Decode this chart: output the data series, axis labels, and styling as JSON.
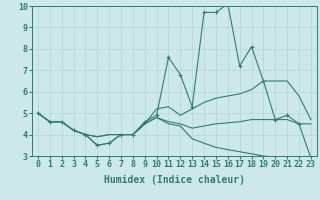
{
  "xlabel": "Humidex (Indice chaleur)",
  "ylabel": "",
  "background_color": "#cde8ea",
  "line_color": "#2d7d6e",
  "xlim": [
    -0.5,
    23.5
  ],
  "ylim": [
    3,
    10
  ],
  "yticks": [
    3,
    4,
    5,
    6,
    7,
    8,
    9,
    10
  ],
  "xticks": [
    0,
    1,
    2,
    3,
    4,
    5,
    6,
    7,
    8,
    9,
    10,
    11,
    12,
    13,
    14,
    15,
    16,
    17,
    18,
    19,
    20,
    21,
    22,
    23
  ],
  "line1_x": [
    0,
    1,
    2,
    3,
    4,
    5,
    6,
    7,
    8,
    9,
    10,
    11,
    12,
    13,
    14,
    15,
    16,
    17,
    18,
    19,
    20,
    21,
    22,
    23
  ],
  "line1_y": [
    5.0,
    4.6,
    4.6,
    4.2,
    4.0,
    3.5,
    3.6,
    4.0,
    4.0,
    4.6,
    4.9,
    7.6,
    6.8,
    5.3,
    9.7,
    9.7,
    10.1,
    7.2,
    8.1,
    6.5,
    4.7,
    4.9,
    4.5,
    2.9
  ],
  "line2_x": [
    0,
    1,
    2,
    3,
    4,
    5,
    6,
    7,
    8,
    9,
    10,
    11,
    12,
    13,
    14,
    15,
    16,
    17,
    18,
    19,
    20,
    21,
    22,
    23
  ],
  "line2_y": [
    5.0,
    4.6,
    4.6,
    4.2,
    4.0,
    3.9,
    4.0,
    4.0,
    4.0,
    4.5,
    5.2,
    5.3,
    4.9,
    5.2,
    5.5,
    5.7,
    5.8,
    5.9,
    6.1,
    6.5,
    6.5,
    6.5,
    5.8,
    4.7
  ],
  "line3_x": [
    0,
    1,
    2,
    3,
    4,
    5,
    6,
    7,
    8,
    9,
    10,
    11,
    12,
    13,
    14,
    15,
    16,
    17,
    18,
    19,
    20,
    21,
    22,
    23
  ],
  "line3_y": [
    5.0,
    4.6,
    4.6,
    4.2,
    4.0,
    3.5,
    3.6,
    4.0,
    4.0,
    4.5,
    4.8,
    4.5,
    4.4,
    3.8,
    3.6,
    3.4,
    3.3,
    3.2,
    3.1,
    3.0,
    2.95,
    2.9,
    2.85,
    2.9
  ],
  "line4_x": [
    0,
    1,
    2,
    3,
    4,
    5,
    6,
    7,
    8,
    9,
    10,
    11,
    12,
    13,
    14,
    15,
    16,
    17,
    18,
    19,
    20,
    21,
    22,
    23
  ],
  "line4_y": [
    5.0,
    4.6,
    4.6,
    4.2,
    4.0,
    3.9,
    4.0,
    4.0,
    4.0,
    4.5,
    4.8,
    4.6,
    4.5,
    4.3,
    4.4,
    4.5,
    4.55,
    4.6,
    4.7,
    4.7,
    4.7,
    4.7,
    4.5,
    4.5
  ],
  "markers_x": [
    0,
    1,
    2,
    3,
    4,
    5,
    6,
    7,
    8,
    9,
    10,
    11,
    12,
    13,
    14,
    15,
    16,
    17,
    18,
    19,
    20,
    21,
    22,
    23
  ],
  "fontsize_label": 7,
  "fontsize_tick": 6,
  "grid_color": "#b8d8da",
  "fig_bg": "#cde8ea"
}
